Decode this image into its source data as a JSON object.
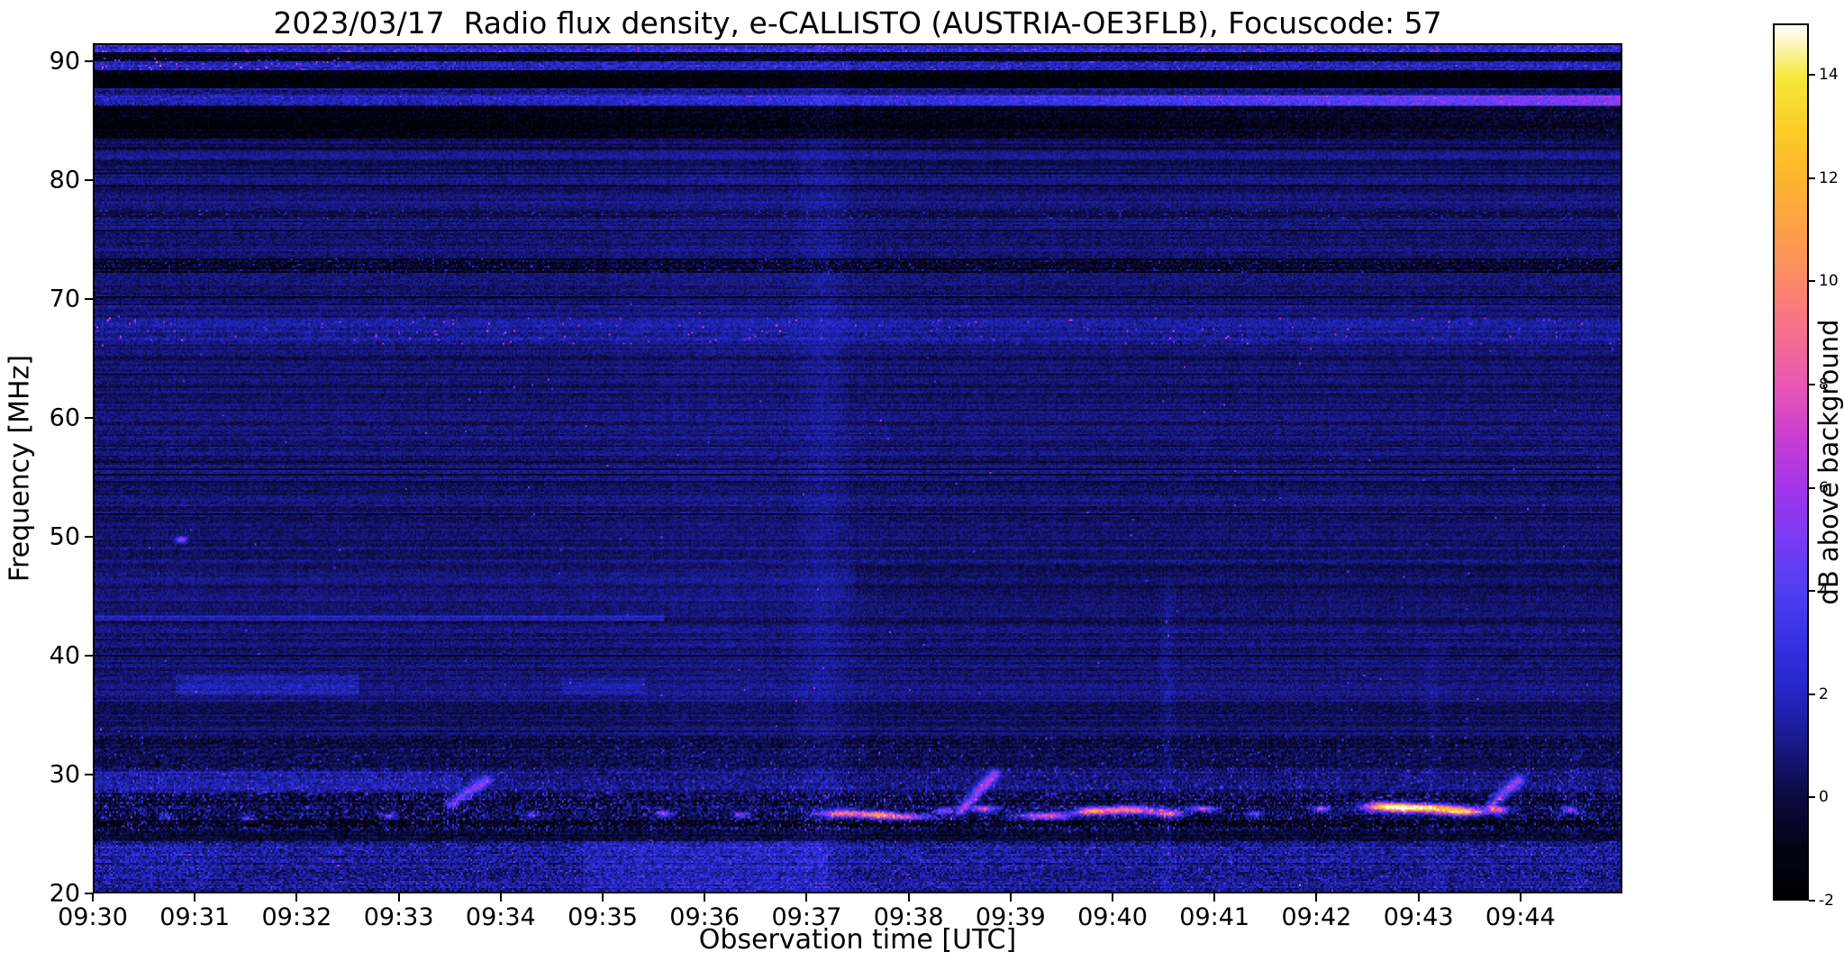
{
  "chart_data": {
    "type": "heatmap",
    "title": "2023/03/17  Radio flux density, e-CALLISTO (AUSTRIA-OE3FLB), Focuscode: 57",
    "xlabel": "Observation time [UTC]",
    "ylabel": "Frequency [MHz]",
    "x_tick_labels": [
      "09:30",
      "09:31",
      "09:32",
      "09:33",
      "09:34",
      "09:35",
      "09:36",
      "09:37",
      "09:38",
      "09:39",
      "09:40",
      "09:41",
      "09:42",
      "09:43",
      "09:44"
    ],
    "x_tick_minutes": [
      0,
      1,
      2,
      3,
      4,
      5,
      6,
      7,
      8,
      9,
      10,
      11,
      12,
      13,
      14
    ],
    "x_range_minutes": [
      0,
      15
    ],
    "y_ticks": [
      20,
      30,
      40,
      50,
      60,
      70,
      80,
      90
    ],
    "y_range": [
      20,
      91.5
    ],
    "grid": false,
    "legend": "colorbar-right",
    "colorbar": {
      "label": "dB above background",
      "ticks": [
        14,
        12,
        10,
        8,
        6,
        4,
        2,
        0,
        -2
      ],
      "tick_labels": [
        "14",
        "12",
        "10",
        "8",
        "6",
        "4",
        "2",
        "0",
        "-2"
      ],
      "range": [
        -2,
        15
      ]
    },
    "colormap_stops": [
      [
        0.0,
        "#000004"
      ],
      [
        0.06,
        "#030318"
      ],
      [
        0.118,
        "#0c0b43"
      ],
      [
        0.176,
        "#171a86"
      ],
      [
        0.235,
        "#2426c6"
      ],
      [
        0.294,
        "#3532e4"
      ],
      [
        0.353,
        "#4f3ff2"
      ],
      [
        0.412,
        "#7a3af4"
      ],
      [
        0.471,
        "#a335ea"
      ],
      [
        0.529,
        "#c93dd4"
      ],
      [
        0.588,
        "#e957b4"
      ],
      [
        0.647,
        "#f66f90"
      ],
      [
        0.706,
        "#fb886a"
      ],
      [
        0.765,
        "#fc9f48"
      ],
      [
        0.824,
        "#fdb52e"
      ],
      [
        0.882,
        "#fccd24"
      ],
      [
        0.941,
        "#f7e73c"
      ],
      [
        1.0,
        "#ffffff"
      ]
    ],
    "description": "Dark-blue noisy dynamic spectrum 20-91 MHz over 09:30-09:45 UTC. Bright/dark striped interference bands near 84-91 MHz (magenta streak near 86 MHz strengthening to the right), speckled RFI bands near 66-68 and 72-73 MHz, a light line at 43 MHz until ~09:35, a slightly brighter vertical column near 09:37, and a strong noisy RFI band at 24-30 MHz with bright yellow/white bursts near 26-27 MHz around 09:37-09:38, 09:39-09:41 and 09:42-09:44 plus short diagonal streaks to ~30 MHz.",
    "model": {
      "base": 0.7,
      "pixel_noise": 0.55,
      "row_noise": 0.45,
      "rfi_prob": 0.0006,
      "rfi_fmax": 70,
      "seg_f_scale": 0.116,
      "hatch_bands": [
        [
          30.4,
          33.2,
          0.6
        ],
        [
          72.2,
          73.5,
          0.5
        ],
        [
          83.6,
          91.5,
          0.35
        ],
        [
          25.2,
          28.3,
          0.3
        ]
      ],
      "bands": [
        {
          "f": [
            90.9,
            91.5
          ],
          "add": 1.8,
          "noise": 1.0,
          "sp": 0.05,
          "spv": 2.5
        },
        {
          "f": [
            90.2,
            90.9
          ],
          "add": -1.2,
          "noise": 0.6
        },
        {
          "f": [
            89.4,
            90.2
          ],
          "add": 1.5,
          "noise": 0.8,
          "sp": 0.03,
          "spv": 2.0
        },
        {
          "f": [
            89.4,
            90.6
          ],
          "t": [
            0,
            2.5
          ],
          "sp": 0.045,
          "spv": 4.5
        },
        {
          "f": [
            87.9,
            89.4
          ],
          "add": -2.2,
          "noise": 0.6
        },
        {
          "f": [
            87.3,
            87.9
          ],
          "add": 0.2,
          "noise": 0.5
        },
        {
          "f": [
            86.3,
            87.3
          ],
          "add": 1.0,
          "grad": 4.6,
          "noise": 0.7,
          "sp": 0.02,
          "spv": 2.0
        },
        {
          "f": [
            83.6,
            86.3
          ],
          "add": -2.1,
          "grad": -1.0,
          "noise": 0.7
        },
        {
          "f": [
            83.0,
            83.6
          ],
          "add": -0.4
        },
        {
          "f": [
            81.2,
            81.8
          ],
          "add": -0.35
        },
        {
          "f": [
            79.3,
            79.9
          ],
          "add": -0.35
        },
        {
          "f": [
            76.8,
            77.5
          ],
          "add": -0.6,
          "sp": 0.06,
          "spv": 1.5
        },
        {
          "f": [
            74.8,
            75.4
          ],
          "add": -0.35
        },
        {
          "f": [
            72.2,
            73.5
          ],
          "add": -1.0,
          "noise": 0.8,
          "sp": 0.05,
          "spv": 1.8
        },
        {
          "f": [
            69.5,
            70.1
          ],
          "add": -0.3
        },
        {
          "f": [
            66.2,
            68.4
          ],
          "add": 0.55,
          "noise": 0.5,
          "sp": 0.012,
          "spv": 4.2
        },
        {
          "f": [
            64.8,
            65.3
          ],
          "add": -0.35
        },
        {
          "f": [
            61.5,
            62.1
          ],
          "add": -0.3
        },
        {
          "f": [
            59.8,
            60.4
          ],
          "add": 0.3
        },
        {
          "f": [
            57.6,
            58.1
          ],
          "add": -0.4
        },
        {
          "f": [
            56.2,
            56.8
          ],
          "add": -0.5
        },
        {
          "f": [
            49.5,
            50.1
          ],
          "add": -0.3
        },
        {
          "f": [
            44.5,
            47.5
          ],
          "t": [
            7.5,
            15
          ],
          "add": -0.35
        },
        {
          "f": [
            42.85,
            43.4
          ],
          "t": [
            0,
            5.6
          ],
          "add": 1.3
        },
        {
          "f": [
            36.7,
            38.3
          ],
          "t": [
            0.8,
            2.6
          ],
          "add": 0.8,
          "noise": 0.4
        },
        {
          "f": [
            36.7,
            38.0
          ],
          "t": [
            4.6,
            5.4
          ],
          "add": 0.6
        },
        {
          "f": [
            35.3,
            36.0
          ],
          "add": -0.4
        },
        {
          "f": [
            33.0,
            35.3
          ],
          "add": -0.2
        },
        {
          "f": [
            30.4,
            33.2
          ],
          "add": -0.55,
          "noise": 0.7,
          "sp": 0.02,
          "spv": 2.5
        },
        {
          "f": [
            28.3,
            30.4
          ],
          "add": 0.1,
          "noise": 0.9,
          "sp": 0.05,
          "spv": 2.2
        },
        {
          "f": [
            28.3,
            30.2
          ],
          "t": [
            0,
            3.6
          ],
          "add": 0.7
        },
        {
          "f": [
            25.2,
            28.3
          ],
          "add": -0.8,
          "noise": 1.5,
          "sp": 0.1,
          "spv": 2.6
        },
        {
          "f": [
            25.4,
            26.1
          ],
          "add": -0.9,
          "noise": 0.5
        },
        {
          "f": [
            24.2,
            25.2
          ],
          "add": -1.1,
          "noise": 0.8
        },
        {
          "f": [
            20.0,
            24.2
          ],
          "add": 0.55,
          "noise": 1.1,
          "sp": 0.06,
          "spv": 1.6
        },
        {
          "f": [
            20.0,
            24.2
          ],
          "t": [
            4.8,
            7.2
          ],
          "add": 0.6
        },
        {
          "f": [
            21.0,
            24.0
          ],
          "t": [
            0,
            1.2
          ],
          "add": 0.4
        }
      ],
      "verticals": [
        {
          "t": 7.15,
          "w": 0.35,
          "add": 0.55,
          "fmax": 92
        },
        {
          "t": 6.2,
          "w": 1.8,
          "add": 0.22,
          "fmax": 92
        },
        {
          "t": 10.55,
          "w": 0.1,
          "add": 0.5,
          "fmax": 46
        },
        {
          "t": 13.15,
          "w": 0.1,
          "add": 0.4,
          "fmax": 41
        },
        {
          "t": 14.55,
          "w": 0.12,
          "add": 0.35,
          "fmax": 33
        }
      ],
      "bursts": [
        [
          0.85,
          49.7,
          0.05,
          0.25,
          6
        ],
        [
          0.7,
          26.4,
          0.06,
          0.25,
          3.5
        ],
        [
          1.5,
          26.2,
          0.06,
          0.25,
          3.5
        ],
        [
          2.9,
          26.4,
          0.07,
          0.25,
          4.5
        ],
        [
          4.3,
          26.5,
          0.06,
          0.25,
          4
        ],
        [
          5.6,
          26.6,
          0.08,
          0.3,
          5
        ],
        [
          6.35,
          26.5,
          0.07,
          0.25,
          4.5
        ],
        [
          7.35,
          26.6,
          0.22,
          0.3,
          9
        ],
        [
          7.7,
          26.5,
          0.18,
          0.28,
          10
        ],
        [
          7.98,
          26.3,
          0.22,
          0.25,
          7.5
        ],
        [
          8.35,
          26.8,
          0.1,
          0.25,
          6
        ],
        [
          8.75,
          27.0,
          0.12,
          0.28,
          7
        ],
        [
          9.35,
          26.4,
          0.25,
          0.3,
          8
        ],
        [
          9.8,
          26.8,
          0.16,
          0.3,
          9
        ],
        [
          10.15,
          26.9,
          0.28,
          0.32,
          10
        ],
        [
          10.55,
          26.6,
          0.16,
          0.28,
          8
        ],
        [
          10.9,
          27.0,
          0.12,
          0.25,
          7
        ],
        [
          11.4,
          26.6,
          0.07,
          0.25,
          5
        ],
        [
          12.05,
          27.0,
          0.09,
          0.25,
          6
        ],
        [
          12.7,
          27.2,
          0.22,
          0.35,
          11
        ],
        [
          13.05,
          27.05,
          0.35,
          0.35,
          14
        ],
        [
          13.45,
          26.75,
          0.2,
          0.3,
          12
        ],
        [
          13.8,
          26.9,
          0.1,
          0.28,
          8
        ],
        [
          14.5,
          26.9,
          0.08,
          0.25,
          5.5
        ]
      ],
      "segments": [
        [
          3.5,
          27.4,
          3.85,
          29.4,
          0.05,
          4.5
        ],
        [
          8.52,
          26.9,
          8.85,
          29.9,
          0.05,
          5.5
        ],
        [
          13.72,
          27.3,
          14.0,
          29.4,
          0.05,
          5.0
        ]
      ]
    }
  }
}
